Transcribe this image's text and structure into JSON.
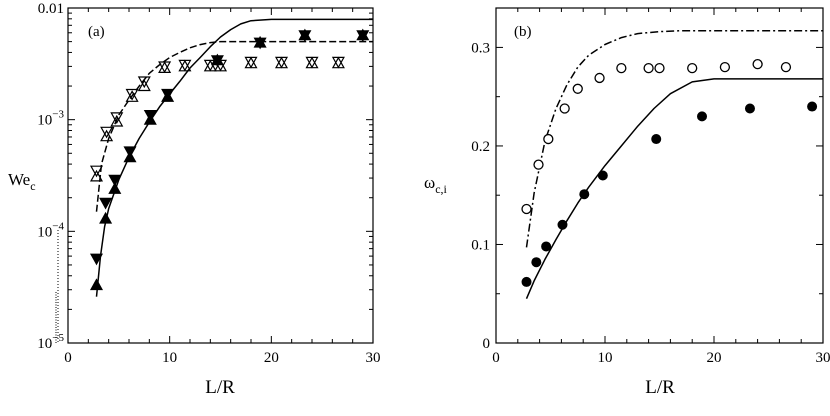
{
  "chart_data": [
    {
      "type": "scatter",
      "panel_label": "(a)",
      "xlabel": "L/R",
      "ylabel_main": "We",
      "ylabel_sub": "c",
      "y_scale": "log",
      "xlim": [
        0,
        30
      ],
      "ylim": [
        1e-05,
        0.01
      ],
      "x_ticks": [
        "0",
        "10",
        "20",
        "30"
      ],
      "y_ticks": [
        {
          "value": 1e-05,
          "base": "10",
          "exp": "−5"
        },
        {
          "value": 0.0001,
          "base": "10",
          "exp": "−4"
        },
        {
          "value": 0.001,
          "base": "10",
          "exp": "−3"
        },
        {
          "value": 0.01,
          "text": "0.01"
        }
      ],
      "grid": false,
      "series": [
        {
          "marker": "triangle-up-filled",
          "x": [
            2.8,
            3.7,
            4.6,
            6.1,
            8.1,
            9.8,
            14.7,
            18.9,
            23.3,
            29.0
          ],
          "y": [
            3.3e-05,
            0.00013,
            0.00024,
            0.00046,
            0.001,
            0.0016,
            0.0034,
            0.0049,
            0.0057,
            0.0057
          ]
        },
        {
          "marker": "triangle-down-filled",
          "x": [
            2.8,
            3.7,
            4.6,
            6.1,
            8.1,
            9.8,
            14.7,
            18.9,
            23.3,
            29.0
          ],
          "y": [
            5.7e-05,
            0.00018,
            0.00029,
            0.00052,
            0.0011,
            0.0017,
            0.0034,
            0.0049,
            0.0057,
            0.0057
          ]
        },
        {
          "marker": "triangle-up-open",
          "x": [
            2.8,
            3.8,
            4.8,
            6.3,
            7.5,
            9.5,
            11.5,
            14.0,
            15.0,
            18.0,
            21.0,
            24.0,
            26.6
          ],
          "y": [
            0.00031,
            0.00071,
            0.00096,
            0.0016,
            0.002,
            0.0029,
            0.003,
            0.003,
            0.003,
            0.0032,
            0.0032,
            0.0032,
            0.0032
          ]
        },
        {
          "marker": "triangle-down-open",
          "x": [
            2.8,
            3.8,
            4.8,
            6.3,
            7.5,
            9.5,
            11.5,
            14.0,
            15.0,
            18.0,
            21.0,
            24.0,
            26.6
          ],
          "y": [
            0.00035,
            0.00078,
            0.00105,
            0.0017,
            0.0022,
            0.003,
            0.0031,
            0.0031,
            0.0031,
            0.0033,
            0.0033,
            0.0033,
            0.0033
          ]
        }
      ],
      "curves": [
        {
          "style": "solid",
          "x": [
            2.8,
            3.2,
            3.6,
            4.0,
            5.0,
            6.0,
            7.0,
            8.0,
            9.0,
            10.0,
            11.0,
            12.0,
            13.0,
            14.0,
            15.0,
            16.0,
            17.0,
            18.0,
            20.0,
            30.0
          ],
          "y": [
            2.6e-05,
            6e-05,
            0.00011,
            0.00016,
            0.00029,
            0.00046,
            0.00068,
            0.00095,
            0.0013,
            0.0017,
            0.0022,
            0.0029,
            0.0036,
            0.0045,
            0.0055,
            0.0064,
            0.0072,
            0.0077,
            0.0079,
            0.0079
          ]
        },
        {
          "style": "dashed",
          "x": [
            2.8,
            3.3,
            4.0,
            5.0,
            6.0,
            7.0,
            8.0,
            9.0,
            10.0,
            11.0,
            12.0,
            13.0,
            14.0,
            15.0,
            30.0
          ],
          "y": [
            0.00015,
            0.0004,
            0.00068,
            0.0011,
            0.0015,
            0.002,
            0.0026,
            0.0031,
            0.0036,
            0.004,
            0.0044,
            0.0047,
            0.0049,
            0.005,
            0.005
          ]
        }
      ]
    },
    {
      "type": "scatter",
      "panel_label": "(b)",
      "xlabel": "L/R",
      "ylabel_main": "ω",
      "ylabel_sub": "c,i",
      "y_scale": "linear",
      "xlim": [
        0,
        30
      ],
      "ylim": [
        0,
        0.34
      ],
      "x_ticks": [
        "0",
        "10",
        "20",
        "30"
      ],
      "y_ticks": [
        "0",
        "0.1",
        "0.2",
        "0.3"
      ],
      "grid": false,
      "series": [
        {
          "marker": "circle-filled",
          "x": [
            2.8,
            3.7,
            4.6,
            6.1,
            8.1,
            9.8,
            14.7,
            18.9,
            23.3,
            29.0
          ],
          "y": [
            0.062,
            0.082,
            0.098,
            0.12,
            0.151,
            0.17,
            0.207,
            0.23,
            0.238,
            0.24
          ]
        },
        {
          "marker": "circle-open",
          "x": [
            2.8,
            3.9,
            4.8,
            6.3,
            7.5,
            9.5,
            11.5,
            14.0,
            15.0,
            18.0,
            21.0,
            24.0,
            26.6
          ],
          "y": [
            0.136,
            0.181,
            0.207,
            0.238,
            0.258,
            0.269,
            0.279,
            0.279,
            0.279,
            0.279,
            0.28,
            0.283,
            0.28
          ]
        }
      ],
      "curves": [
        {
          "style": "solid",
          "x": [
            2.8,
            3.5,
            4.5,
            5.5,
            6.5,
            7.5,
            8.5,
            10.0,
            11.5,
            13.0,
            14.5,
            16.0,
            18.0,
            20.0,
            30.0
          ],
          "y": [
            0.045,
            0.063,
            0.085,
            0.105,
            0.124,
            0.142,
            0.158,
            0.18,
            0.2,
            0.22,
            0.238,
            0.253,
            0.265,
            0.268,
            0.268
          ]
        },
        {
          "style": "dashdot",
          "x": [
            2.8,
            3.5,
            4.5,
            5.5,
            6.5,
            7.5,
            8.5,
            10.0,
            11.5,
            13.0,
            15.0,
            17.0,
            30.0
          ],
          "y": [
            0.097,
            0.152,
            0.205,
            0.238,
            0.262,
            0.28,
            0.292,
            0.303,
            0.31,
            0.314,
            0.316,
            0.317,
            0.317
          ]
        }
      ]
    }
  ]
}
